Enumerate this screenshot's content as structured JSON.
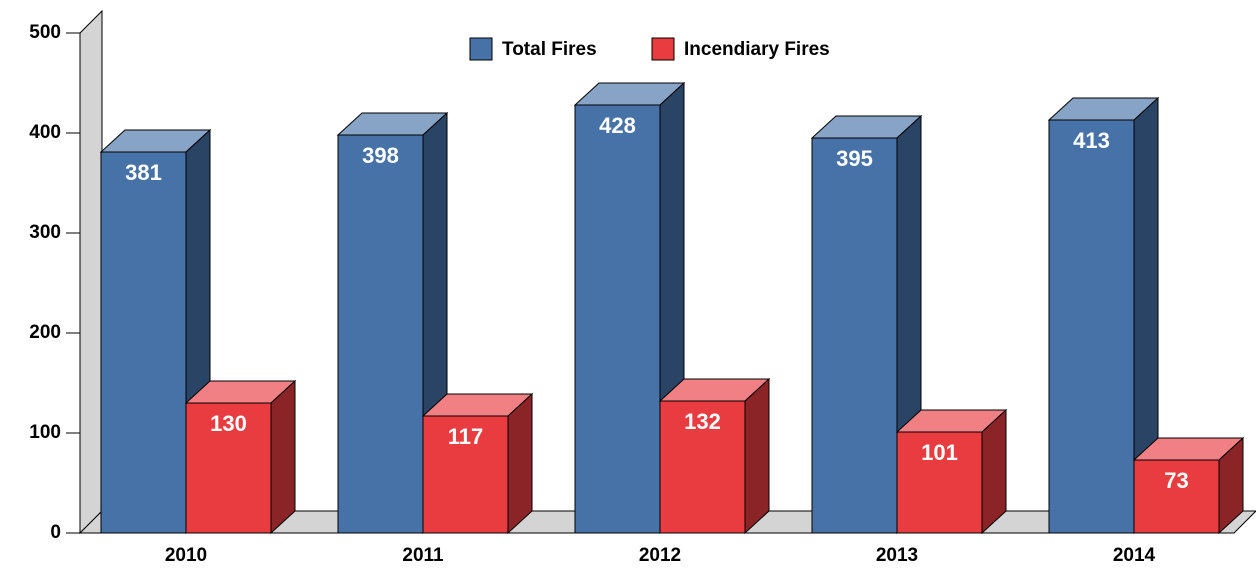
{
  "chart_data": {
    "type": "bar3d",
    "categories": [
      "2010",
      "2011",
      "2012",
      "2013",
      "2014"
    ],
    "series": [
      {
        "name": "Total Fires",
        "color": "#4672a8",
        "values": [
          381,
          398,
          428,
          395,
          413
        ]
      },
      {
        "name": "Incendiary Fires",
        "color": "#e83c40",
        "values": [
          130,
          117,
          132,
          101,
          73
        ]
      }
    ],
    "ylim": [
      0,
      500
    ],
    "yticks": [
      0,
      100,
      200,
      300,
      400,
      500
    ],
    "grid": false,
    "legend": "top"
  }
}
